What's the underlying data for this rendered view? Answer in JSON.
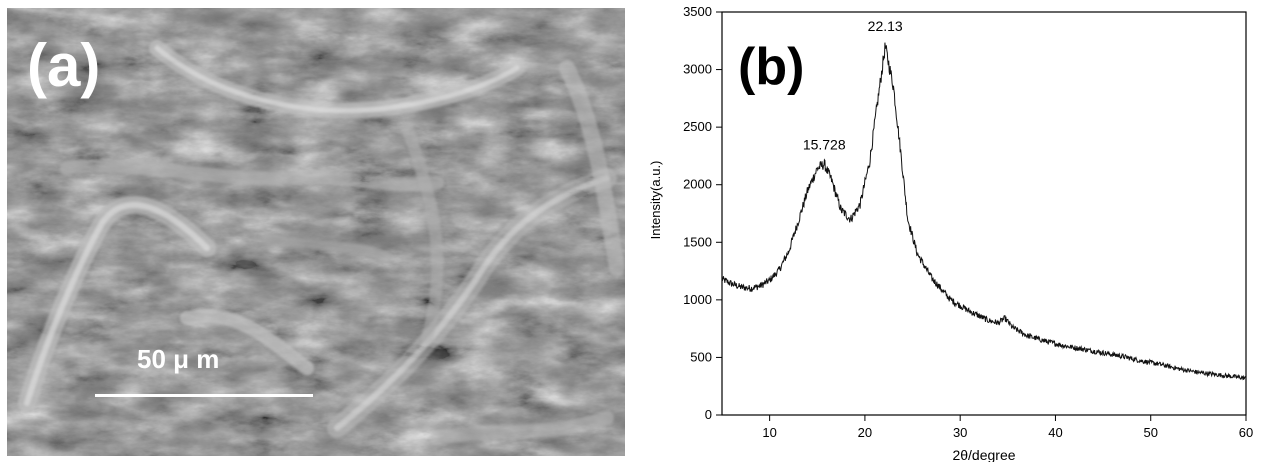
{
  "panel_a": {
    "label": "(a)",
    "scale_bar_text": "50 μ m"
  },
  "chart_data": {
    "type": "line",
    "panel_label": "(b)",
    "xlabel": "2θ/degree",
    "ylabel": "Intensity(a.u.)",
    "xlim": [
      5,
      60
    ],
    "ylim": [
      0,
      3500
    ],
    "xticks": [
      10,
      20,
      30,
      40,
      50,
      60
    ],
    "yticks": [
      0,
      500,
      1000,
      1500,
      2000,
      2500,
      3000,
      3500
    ],
    "grid": false,
    "annotations": [
      {
        "text": "15.728",
        "x": 15.73,
        "y": 2200
      },
      {
        "text": "22.13",
        "x": 22.13,
        "y": 3230
      }
    ],
    "series": [
      {
        "x": [
          5,
          6,
          7,
          8,
          9,
          10,
          11,
          12,
          13,
          14,
          15,
          15.73,
          16.5,
          17.5,
          18.5,
          19.5,
          20.5,
          21.3,
          22.13,
          23,
          23.8,
          24.5,
          25.5,
          27,
          29,
          31,
          33,
          34,
          34.7,
          35.5,
          37,
          39,
          41,
          43,
          45,
          47,
          49,
          51,
          53,
          55,
          57,
          59,
          60
        ],
        "values": [
          1180,
          1140,
          1110,
          1100,
          1120,
          1170,
          1260,
          1420,
          1680,
          1950,
          2140,
          2180,
          2040,
          1780,
          1700,
          1830,
          2200,
          2700,
          3200,
          2850,
          2250,
          1700,
          1400,
          1190,
          1000,
          900,
          820,
          800,
          840,
          760,
          690,
          640,
          600,
          570,
          540,
          510,
          470,
          440,
          400,
          370,
          350,
          330,
          320
        ]
      }
    ]
  }
}
